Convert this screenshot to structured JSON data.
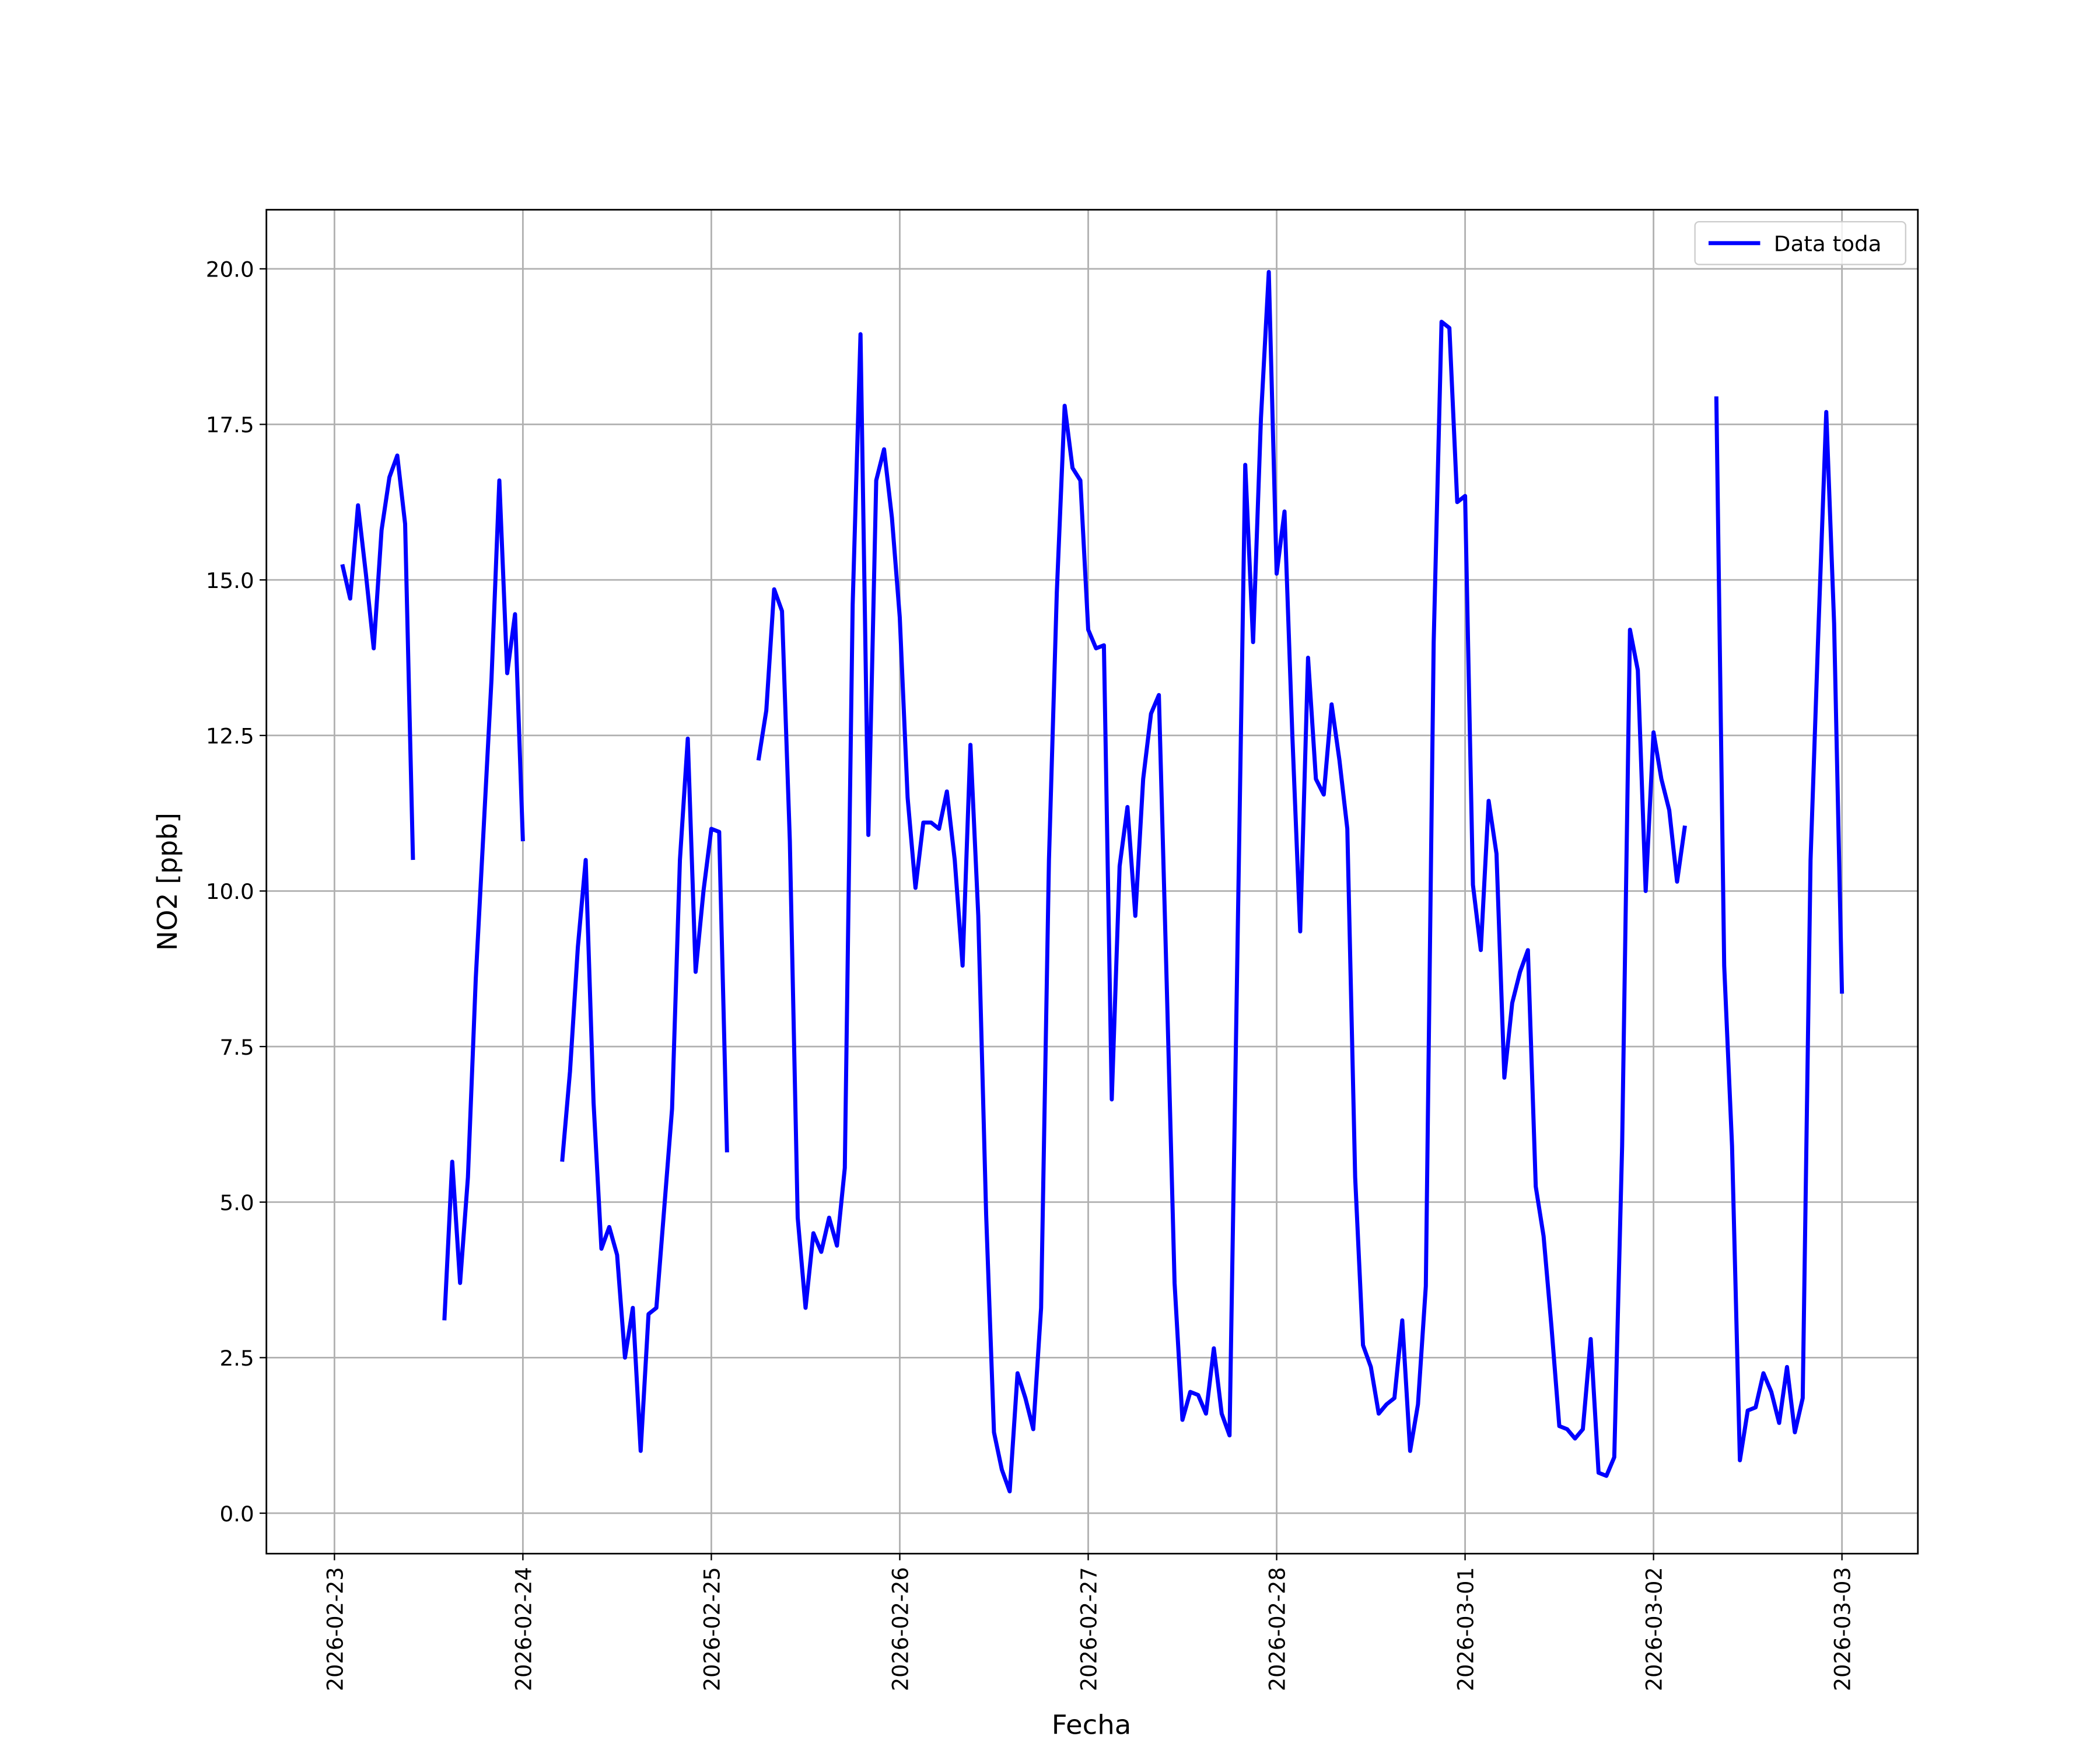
{
  "chart_data": {
    "type": "line",
    "xlabel": "Fecha",
    "ylabel": "NO2 [ppb]",
    "x": [
      "2026-02-23T01:00",
      "2026-02-23T02:00",
      "2026-02-23T03:00",
      "2026-02-23T04:00",
      "2026-02-23T05:00",
      "2026-02-23T06:00",
      "2026-02-23T07:00",
      "2026-02-23T08:00",
      "2026-02-23T09:00",
      "2026-02-23T10:00",
      "2026-02-23T11:00",
      "2026-02-23T14:00",
      "2026-02-23T15:00",
      "2026-02-23T16:00",
      "2026-02-23T17:00",
      "2026-02-23T18:00",
      "2026-02-23T19:00",
      "2026-02-23T20:00",
      "2026-02-23T21:00",
      "2026-02-23T22:00",
      "2026-02-23T23:00",
      "2026-02-24T00:00",
      "2026-02-24T01:00",
      "2026-02-24T05:00",
      "2026-02-24T06:00",
      "2026-02-24T07:00",
      "2026-02-24T08:00",
      "2026-02-24T09:00",
      "2026-02-24T10:00",
      "2026-02-24T11:00",
      "2026-02-24T12:00",
      "2026-02-24T13:00",
      "2026-02-24T14:00",
      "2026-02-24T15:00",
      "2026-02-24T16:00",
      "2026-02-24T17:00",
      "2026-02-24T18:00",
      "2026-02-24T19:00",
      "2026-02-24T20:00",
      "2026-02-24T21:00",
      "2026-02-24T22:00",
      "2026-02-24T23:00",
      "2026-02-25T00:00",
      "2026-02-25T01:00",
      "2026-02-25T02:00",
      "2026-02-25T03:00",
      "2026-02-25T06:00",
      "2026-02-25T07:00",
      "2026-02-25T08:00",
      "2026-02-25T09:00",
      "2026-02-25T10:00",
      "2026-02-25T11:00",
      "2026-02-25T12:00",
      "2026-02-25T13:00",
      "2026-02-25T14:00",
      "2026-02-25T15:00",
      "2026-02-25T16:00",
      "2026-02-25T17:00",
      "2026-02-25T18:00",
      "2026-02-25T19:00",
      "2026-02-25T20:00",
      "2026-02-25T21:00",
      "2026-02-25T22:00",
      "2026-02-25T23:00",
      "2026-02-26T00:00",
      "2026-02-26T01:00",
      "2026-02-26T02:00",
      "2026-02-26T03:00",
      "2026-02-26T04:00",
      "2026-02-26T05:00",
      "2026-02-26T06:00",
      "2026-02-26T07:00",
      "2026-02-26T08:00",
      "2026-02-26T09:00",
      "2026-02-26T10:00",
      "2026-02-26T11:00",
      "2026-02-26T12:00",
      "2026-02-26T13:00",
      "2026-02-26T14:00",
      "2026-02-26T15:00",
      "2026-02-26T16:00",
      "2026-02-26T17:00",
      "2026-02-26T18:00",
      "2026-02-26T19:00",
      "2026-02-26T20:00",
      "2026-02-26T21:00",
      "2026-02-26T22:00",
      "2026-02-26T23:00",
      "2026-02-27T00:00",
      "2026-02-27T01:00",
      "2026-02-27T02:00",
      "2026-02-27T03:00",
      "2026-02-27T04:00",
      "2026-02-27T05:00",
      "2026-02-27T06:00",
      "2026-02-27T07:00",
      "2026-02-27T08:00",
      "2026-02-27T09:00",
      "2026-02-27T10:00",
      "2026-02-27T11:00",
      "2026-02-27T12:00",
      "2026-02-27T13:00",
      "2026-02-27T14:00",
      "2026-02-27T15:00",
      "2026-02-27T16:00",
      "2026-02-27T17:00",
      "2026-02-27T18:00",
      "2026-02-27T19:00",
      "2026-02-27T20:00",
      "2026-02-27T21:00",
      "2026-02-27T22:00",
      "2026-02-27T23:00",
      "2026-02-28T00:00",
      "2026-02-28T01:00",
      "2026-02-28T02:00",
      "2026-02-28T03:00",
      "2026-02-28T04:00",
      "2026-02-28T05:00",
      "2026-02-28T06:00",
      "2026-02-28T07:00",
      "2026-02-28T08:00",
      "2026-02-28T09:00",
      "2026-02-28T10:00",
      "2026-02-28T11:00",
      "2026-02-28T12:00",
      "2026-02-28T13:00",
      "2026-02-28T14:00",
      "2026-02-28T15:00",
      "2026-02-28T16:00",
      "2026-02-28T17:00",
      "2026-02-28T18:00",
      "2026-02-28T19:00",
      "2026-02-28T20:00",
      "2026-02-28T21:00",
      "2026-02-28T22:00",
      "2026-02-28T23:00",
      "2026-03-01T00:00",
      "2026-03-01T01:00",
      "2026-03-01T02:00",
      "2026-03-01T03:00",
      "2026-03-01T04:00",
      "2026-03-01T05:00",
      "2026-03-01T06:00",
      "2026-03-01T07:00",
      "2026-03-01T08:00",
      "2026-03-01T09:00",
      "2026-03-01T10:00",
      "2026-03-01T11:00",
      "2026-03-01T12:00",
      "2026-03-01T13:00",
      "2026-03-01T14:00",
      "2026-03-01T15:00",
      "2026-03-01T16:00",
      "2026-03-01T17:00",
      "2026-03-01T18:00",
      "2026-03-01T19:00",
      "2026-03-01T20:00",
      "2026-03-01T21:00",
      "2026-03-01T22:00",
      "2026-03-01T23:00",
      "2026-03-02T00:00",
      "2026-03-02T01:00",
      "2026-03-02T02:00",
      "2026-03-02T03:00",
      "2026-03-02T04:00",
      "2026-03-02T05:00",
      "2026-03-02T08:00",
      "2026-03-02T09:00",
      "2026-03-02T10:00",
      "2026-03-02T11:00",
      "2026-03-02T12:00",
      "2026-03-02T13:00",
      "2026-03-02T14:00",
      "2026-03-02T15:00",
      "2026-03-02T16:00",
      "2026-03-02T17:00",
      "2026-03-02T18:00",
      "2026-03-02T19:00",
      "2026-03-02T20:00",
      "2026-03-02T21:00",
      "2026-03-02T22:00",
      "2026-03-02T23:00",
      "2026-03-03T00:00"
    ],
    "series": [
      {
        "name": "Data toda",
        "color": "#0000ff",
        "values": [
          15.25,
          14.7,
          16.2,
          15.1,
          13.9,
          15.8,
          16.65,
          17.0,
          15.9,
          10.5,
          null,
          3.1,
          5.65,
          3.7,
          5.4,
          8.6,
          11.0,
          13.4,
          16.6,
          13.5,
          14.45,
          10.8,
          null,
          5.65,
          7.1,
          9.1,
          10.5,
          6.6,
          4.25,
          4.6,
          4.15,
          2.5,
          3.3,
          1.0,
          3.2,
          3.3,
          4.9,
          6.5,
          10.5,
          12.45,
          8.7,
          10.0,
          11.0,
          10.95,
          5.8,
          null,
          12.1,
          12.9,
          14.85,
          14.5,
          10.8,
          4.75,
          3.3,
          4.5,
          4.2,
          4.75,
          4.3,
          5.55,
          14.6,
          18.95,
          10.9,
          16.6,
          17.1,
          16.0,
          14.4,
          11.5,
          10.05,
          11.1,
          11.1,
          11.0,
          11.6,
          10.5,
          8.8,
          12.35,
          9.6,
          4.8,
          1.3,
          0.7,
          0.35,
          2.25,
          1.85,
          1.35,
          3.3,
          10.5,
          14.8,
          17.8,
          16.8,
          16.6,
          14.2,
          13.9,
          13.95,
          6.65,
          10.4,
          11.35,
          9.6,
          11.8,
          12.85,
          13.15,
          8.5,
          3.7,
          1.5,
          1.95,
          1.9,
          1.6,
          2.65,
          1.6,
          1.25,
          9.0,
          16.85,
          14.0,
          17.6,
          19.95,
          15.1,
          16.1,
          12.5,
          9.35,
          13.75,
          11.8,
          11.55,
          13.0,
          12.1,
          11.0,
          5.4,
          2.7,
          2.35,
          1.6,
          1.75,
          1.85,
          3.1,
          1.0,
          1.75,
          3.65,
          14.0,
          19.15,
          19.05,
          16.25,
          16.35,
          10.1,
          9.05,
          11.45,
          10.6,
          7.0,
          8.2,
          8.7,
          9.05,
          5.25,
          4.45,
          3.0,
          1.4,
          1.35,
          1.2,
          1.35,
          2.8,
          0.65,
          0.6,
          0.9,
          5.9,
          14.2,
          13.55,
          10.0,
          12.55,
          11.8,
          11.3,
          10.15,
          11.05,
          null,
          17.95,
          8.8,
          5.9,
          0.85,
          1.65,
          1.7,
          2.25,
          1.95,
          1.45,
          2.35,
          1.3,
          1.85,
          10.5,
          14.2,
          17.7,
          14.3,
          8.35
        ]
      }
    ],
    "xlim": [
      "2026-02-22T15:20",
      "2026-03-03T09:40"
    ],
    "xticks": [
      "2026-02-23",
      "2026-02-24",
      "2026-02-25",
      "2026-02-26",
      "2026-02-27",
      "2026-02-28",
      "2026-03-01",
      "2026-03-02",
      "2026-03-03"
    ],
    "ylim": [
      -0.65,
      20.95
    ],
    "yticks": [
      {
        "value": 0,
        "label": "0.0"
      },
      {
        "value": 2.5,
        "label": "2.5"
      },
      {
        "value": 5,
        "label": "5.0"
      },
      {
        "value": 7.5,
        "label": "7.5"
      },
      {
        "value": 10,
        "label": "10.0"
      },
      {
        "value": 12.5,
        "label": "12.5"
      },
      {
        "value": 15,
        "label": "15.0"
      },
      {
        "value": 17.5,
        "label": "17.5"
      },
      {
        "value": 20,
        "label": "20.0"
      }
    ],
    "grid": true,
    "legend": "upper right"
  }
}
